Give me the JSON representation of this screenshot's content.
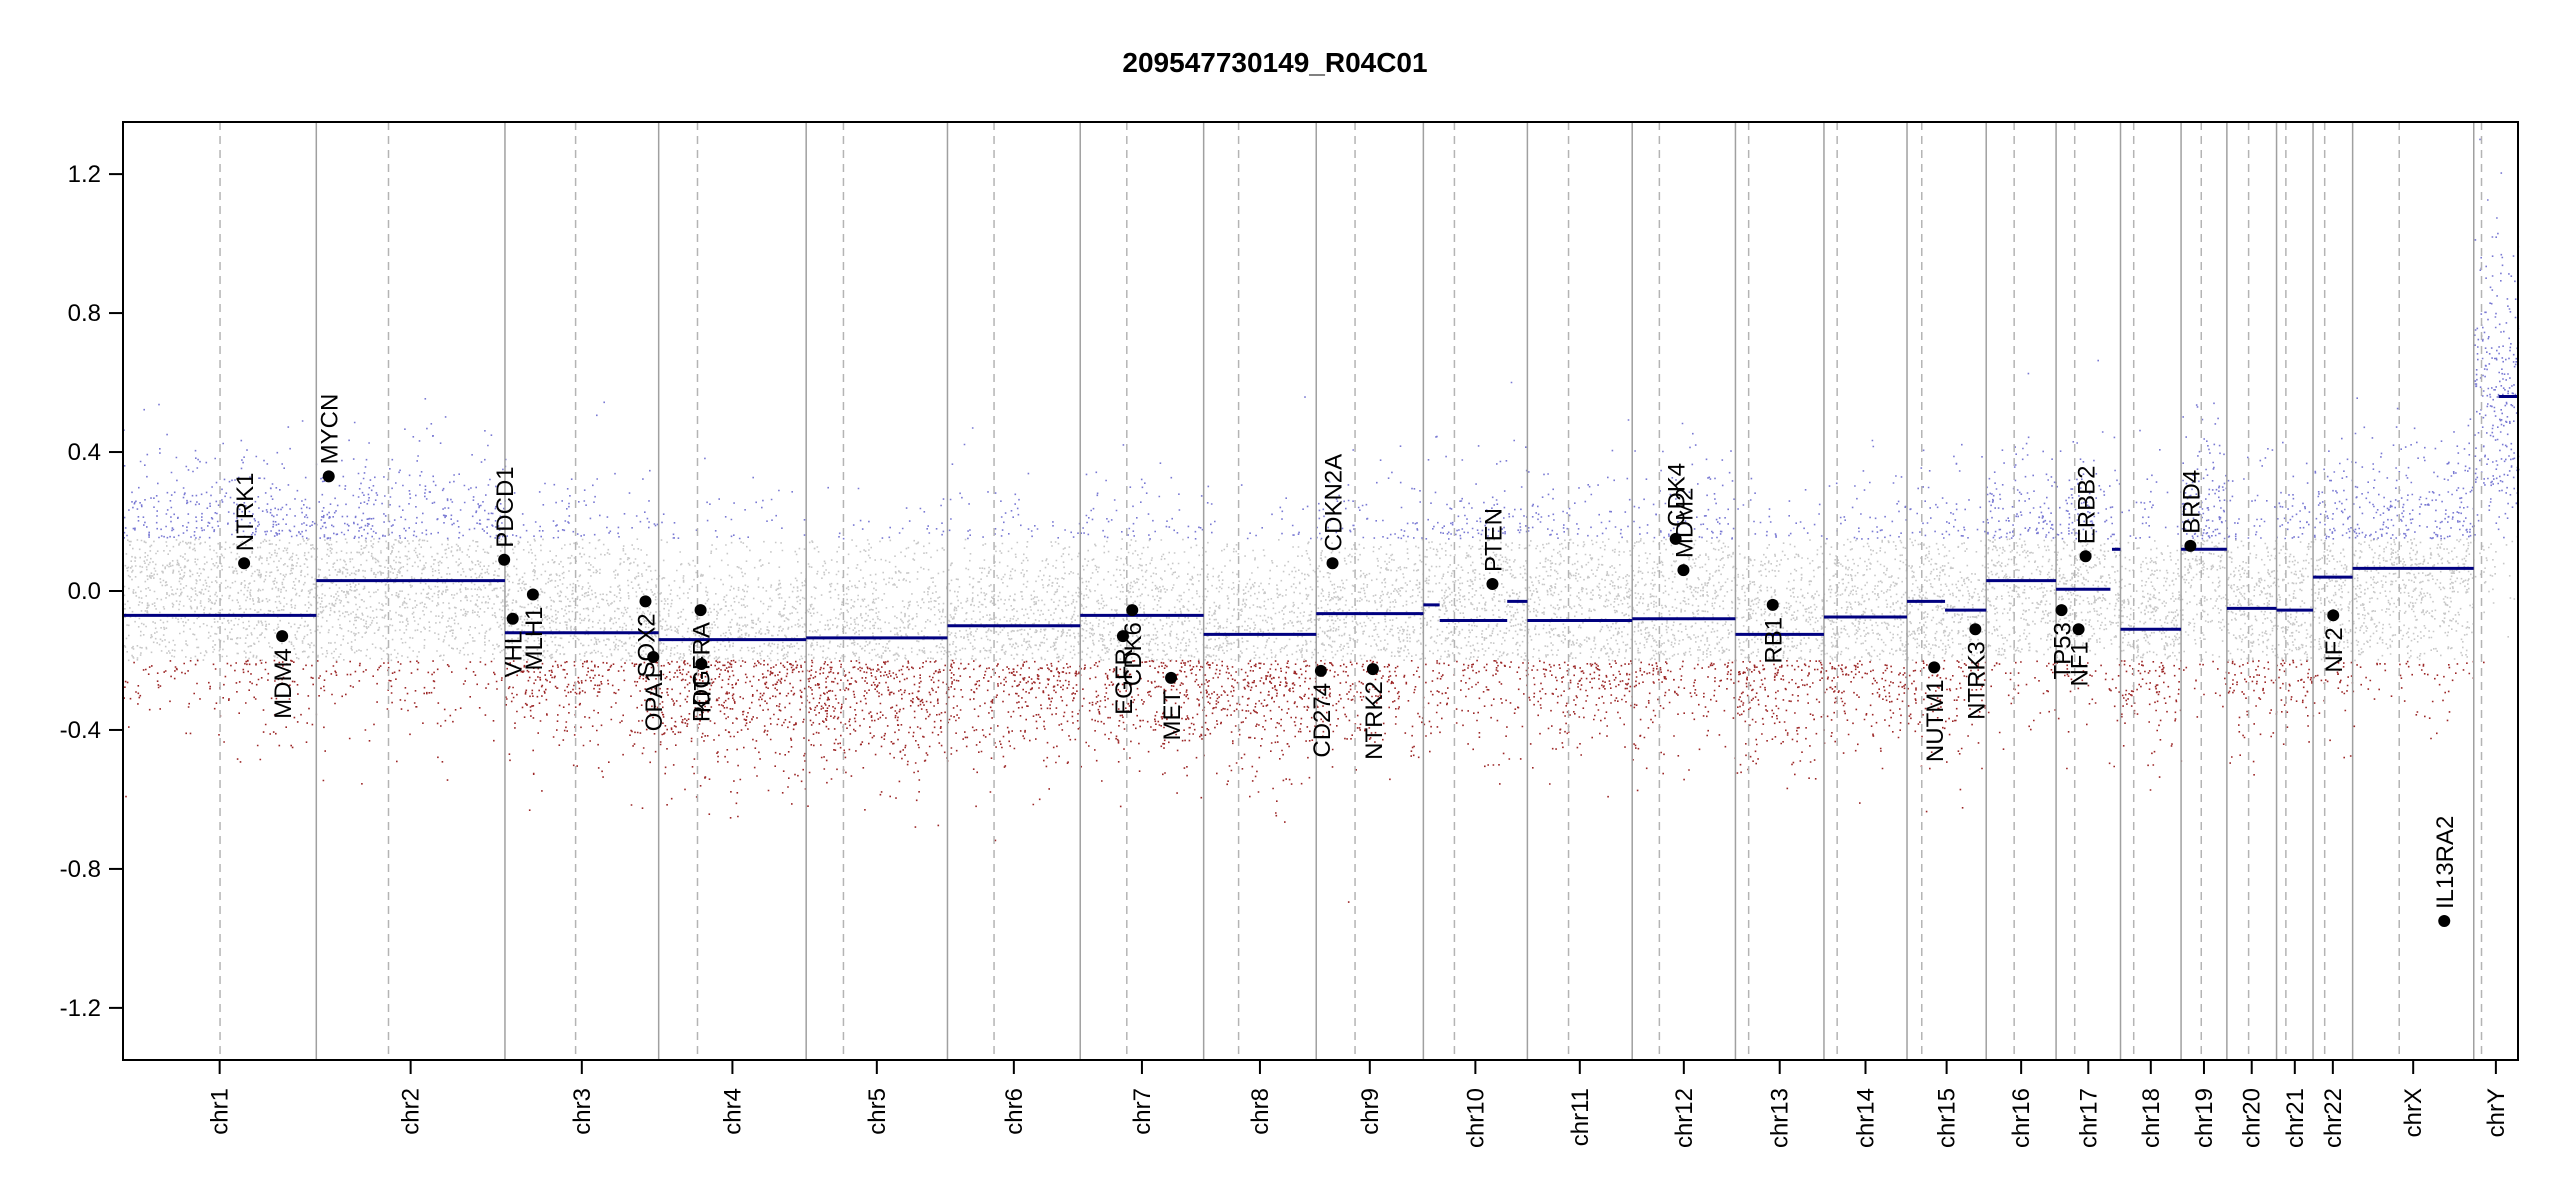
{
  "chart_data": {
    "type": "scatter",
    "title": "209547730149_R04C01",
    "xlabel": "",
    "ylabel": "",
    "ylim": [
      -1.35,
      1.35
    ],
    "yticks": [
      {
        "value": -1.2,
        "label": "-1.2"
      },
      {
        "value": -0.8,
        "label": "-0.8"
      },
      {
        "value": -0.4,
        "label": "-0.4"
      },
      {
        "value": 0.0,
        "label": "0.0"
      },
      {
        "value": 0.4,
        "label": "0.4"
      },
      {
        "value": 0.8,
        "label": "0.8"
      },
      {
        "value": 1.2,
        "label": "1.2"
      }
    ],
    "grid": false,
    "chromosomes": [
      {
        "name": "chr1",
        "start": 0,
        "end": 249,
        "centromere": 125,
        "baseline": 0.0
      },
      {
        "name": "chr2",
        "start": 249,
        "end": 492,
        "centromere": 93,
        "baseline": 0.02
      },
      {
        "name": "chr3",
        "start": 492,
        "end": 690,
        "centromere": 91,
        "baseline": -0.1
      },
      {
        "name": "chr4",
        "start": 690,
        "end": 880,
        "centromere": 50,
        "baseline": -0.18
      },
      {
        "name": "chr5",
        "start": 880,
        "end": 1062,
        "centromere": 48,
        "baseline": -0.18
      },
      {
        "name": "chr6",
        "start": 1062,
        "end": 1233,
        "centromere": 60,
        "baseline": -0.14
      },
      {
        "name": "chr7",
        "start": 1233,
        "end": 1392,
        "centromere": 60,
        "baseline": -0.12
      },
      {
        "name": "chr8",
        "start": 1392,
        "end": 1537,
        "centromere": 45,
        "baseline": -0.17
      },
      {
        "name": "chr9",
        "start": 1537,
        "end": 1675,
        "centromere": 50,
        "baseline": -0.08
      },
      {
        "name": "chr10",
        "start": 1675,
        "end": 1809,
        "centromere": 40,
        "baseline": -0.05
      },
      {
        "name": "chr11",
        "start": 1809,
        "end": 1944,
        "centromere": 53,
        "baseline": -0.07
      },
      {
        "name": "chr12",
        "start": 1944,
        "end": 2077,
        "centromere": 35,
        "baseline": -0.06
      },
      {
        "name": "chr13",
        "start": 2077,
        "end": 2191,
        "centromere": 17,
        "baseline": -0.13
      },
      {
        "name": "chr14",
        "start": 2191,
        "end": 2298,
        "centromere": 17,
        "baseline": -0.1
      },
      {
        "name": "chr15",
        "start": 2298,
        "end": 2400,
        "centromere": 19,
        "baseline": -0.06
      },
      {
        "name": "chr16",
        "start": 2400,
        "end": 2490,
        "centromere": 36,
        "baseline": 0.02
      },
      {
        "name": "chr17",
        "start": 2490,
        "end": 2573,
        "centromere": 24,
        "baseline": 0.02
      },
      {
        "name": "chr18",
        "start": 2573,
        "end": 2651,
        "centromere": 17,
        "baseline": -0.1
      },
      {
        "name": "chr19",
        "start": 2651,
        "end": 2710,
        "centromere": 26,
        "baseline": 0.1
      },
      {
        "name": "chr20",
        "start": 2710,
        "end": 2774,
        "centromere": 28,
        "baseline": -0.06
      },
      {
        "name": "chr21",
        "start": 2774,
        "end": 2821,
        "centromere": 12,
        "baseline": -0.05
      },
      {
        "name": "chr22",
        "start": 2821,
        "end": 2872,
        "centromere": 15,
        "baseline": 0.02
      },
      {
        "name": "chrX",
        "start": 2872,
        "end": 3028,
        "centromere": 60,
        "baseline": 0.05
      },
      {
        "name": "chrY",
        "start": 3028,
        "end": 3085,
        "centromere": 10,
        "baseline": 0.5
      }
    ],
    "series": [
      {
        "values": [
          {
            "chr": "chr1",
            "start": 0,
            "end": 249,
            "y": -0.07
          },
          {
            "chr": "chr2",
            "start": 249,
            "end": 492,
            "y": 0.03
          },
          {
            "chr": "chr3",
            "start": 492,
            "end": 690,
            "y": -0.12
          },
          {
            "chr": "chr4",
            "start": 690,
            "end": 880,
            "y": -0.14
          },
          {
            "chr": "chr5",
            "start": 880,
            "end": 1062,
            "y": -0.135
          },
          {
            "chr": "chr6",
            "start": 1062,
            "end": 1233,
            "y": -0.1
          },
          {
            "chr": "chr7",
            "start": 1233,
            "end": 1392,
            "y": -0.07
          },
          {
            "chr": "chr8",
            "start": 1392,
            "end": 1537,
            "y": -0.125
          },
          {
            "chr": "chr9",
            "start": 1537,
            "end": 1675,
            "y": -0.065
          },
          {
            "chr": "chr10a",
            "start": 1675,
            "end": 1696,
            "y": -0.04
          },
          {
            "chr": "chr10b",
            "start": 1696,
            "end": 1783,
            "y": -0.085
          },
          {
            "chr": "chr10c",
            "start": 1783,
            "end": 1809,
            "y": -0.03
          },
          {
            "chr": "chr11",
            "start": 1809,
            "end": 1944,
            "y": -0.085
          },
          {
            "chr": "chr12",
            "start": 1944,
            "end": 2077,
            "y": -0.08
          },
          {
            "chr": "chr13",
            "start": 2077,
            "end": 2191,
            "y": -0.125
          },
          {
            "chr": "chr14",
            "start": 2191,
            "end": 2298,
            "y": -0.075
          },
          {
            "chr": "chr15a",
            "start": 2298,
            "end": 2347,
            "y": -0.03
          },
          {
            "chr": "chr15b",
            "start": 2347,
            "end": 2400,
            "y": -0.055
          },
          {
            "chr": "chr16",
            "start": 2400,
            "end": 2490,
            "y": 0.03
          },
          {
            "chr": "chr17",
            "start": 2490,
            "end": 2560,
            "y": 0.005
          },
          {
            "chr": "chr17b",
            "start": 2562,
            "end": 2573,
            "y": 0.12
          },
          {
            "chr": "chr18",
            "start": 2573,
            "end": 2651,
            "y": -0.11
          },
          {
            "chr": "chr19",
            "start": 2651,
            "end": 2710,
            "y": 0.12
          },
          {
            "chr": "chr20",
            "start": 2710,
            "end": 2774,
            "y": -0.05
          },
          {
            "chr": "chr21",
            "start": 2774,
            "end": 2821,
            "y": -0.055
          },
          {
            "chr": "chr22",
            "start": 2821,
            "end": 2872,
            "y": 0.04
          },
          {
            "chr": "chrX",
            "start": 2872,
            "end": 3028,
            "y": 0.065
          },
          {
            "chr": "chrY",
            "start": 3060,
            "end": 3085,
            "y": 0.56
          }
        ]
      }
    ],
    "genes": [
      {
        "name": "NTRK1",
        "x": 156,
        "y": 0.08,
        "label_side": "above"
      },
      {
        "name": "MDM4",
        "x": 205,
        "y": -0.13,
        "label_side": "below"
      },
      {
        "name": "MYCN",
        "x": 265,
        "y": 0.33,
        "label_side": "above"
      },
      {
        "name": "PDCD1",
        "x": 491,
        "y": 0.09,
        "label_side": "above"
      },
      {
        "name": "VHL",
        "x": 502,
        "y": -0.08,
        "label_side": "below"
      },
      {
        "name": "MLH1",
        "x": 528,
        "y": -0.01,
        "label_side": "below"
      },
      {
        "name": "SOX2",
        "x": 673,
        "y": -0.03,
        "label_side": "below"
      },
      {
        "name": "OPA1",
        "x": 683,
        "y": -0.19,
        "label_side": "below"
      },
      {
        "name": "PDGFRA",
        "x": 744,
        "y": -0.055,
        "label_side": "below"
      },
      {
        "name": "KIT",
        "x": 745,
        "y": -0.21,
        "label_side": "below"
      },
      {
        "name": "EGFR",
        "x": 1288,
        "y": -0.13,
        "label_side": "below"
      },
      {
        "name": "CDK6",
        "x": 1300,
        "y": -0.055,
        "label_side": "below"
      },
      {
        "name": "MET",
        "x": 1350,
        "y": -0.25,
        "label_side": "below"
      },
      {
        "name": "CD274",
        "x": 1543,
        "y": -0.23,
        "label_side": "below"
      },
      {
        "name": "CDKN2A",
        "x": 1558,
        "y": 0.08,
        "label_side": "above"
      },
      {
        "name": "NTRK2",
        "x": 1610,
        "y": -0.225,
        "label_side": "below"
      },
      {
        "name": "PTEN",
        "x": 1764,
        "y": 0.02,
        "label_side": "above"
      },
      {
        "name": "CDK4",
        "x": 2000,
        "y": 0.15,
        "label_side": "above"
      },
      {
        "name": "MDM2",
        "x": 2010,
        "y": 0.06,
        "label_side": "above"
      },
      {
        "name": "RB1",
        "x": 2125,
        "y": -0.04,
        "label_side": "below"
      },
      {
        "name": "NUTM1",
        "x": 2333,
        "y": -0.22,
        "label_side": "below"
      },
      {
        "name": "NTRK3",
        "x": 2386,
        "y": -0.11,
        "label_side": "below"
      },
      {
        "name": "TP53",
        "x": 2497,
        "y": -0.055,
        "label_side": "below"
      },
      {
        "name": "NF1",
        "x": 2519,
        "y": -0.11,
        "label_side": "below"
      },
      {
        "name": "ERBB2",
        "x": 2528,
        "y": 0.1,
        "label_side": "above"
      },
      {
        "name": "BRD4",
        "x": 2663,
        "y": 0.13,
        "label_side": "above"
      },
      {
        "name": "NF2",
        "x": 2847,
        "y": -0.07,
        "label_side": "below"
      },
      {
        "name": "IL13RA2",
        "x": 2990,
        "y": -0.95,
        "label_side": "above"
      }
    ],
    "colors": {
      "segment": "#000080",
      "gain": "#4040c0",
      "loss": "#8b0000",
      "neutral": "#c8c8c8",
      "boundary": "#a0a0a0",
      "centromere": "#b4b4b4"
    }
  }
}
